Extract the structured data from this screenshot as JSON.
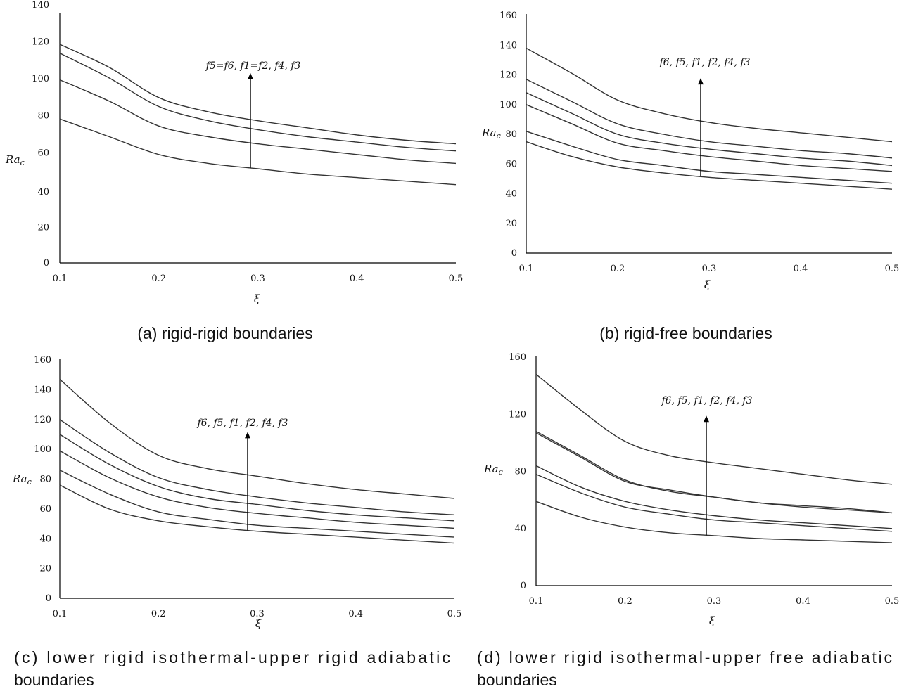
{
  "chart_data": [
    {
      "type": "line",
      "caption": "(a) rigid-rigid boundaries",
      "xlabel": "ξ",
      "ylabel": "Ra",
      "ylabel_sub": "c",
      "xticks": [
        "0.1",
        "0.2",
        "0.3",
        "0.4",
        "0.5"
      ],
      "yticks": [
        "0",
        "20",
        "40",
        "60",
        "80",
        "100",
        "120",
        "140"
      ],
      "xlim": [
        0.1,
        0.5
      ],
      "ylim": [
        0,
        140
      ],
      "annotation": "f5=f6, f1=f2, f4, f3",
      "x": [
        0.1,
        0.15,
        0.2,
        0.25,
        0.3,
        0.35,
        0.4,
        0.45,
        0.5
      ],
      "series": [
        {
          "values": [
            81,
            71,
            61,
            56,
            53,
            50,
            48,
            46,
            44
          ]
        },
        {
          "values": [
            103,
            91,
            77,
            71,
            67,
            64,
            61,
            58,
            56
          ]
        },
        {
          "values": [
            118,
            104,
            88,
            80,
            75,
            71,
            68,
            65,
            63
          ]
        },
        {
          "values": [
            123,
            110,
            93,
            85,
            80,
            76,
            72,
            69,
            67
          ]
        }
      ]
    },
    {
      "type": "line",
      "caption": "(b) rigid-free boundaries",
      "xlabel": "ξ",
      "ylabel": "Ra",
      "ylabel_sub": "c",
      "xticks": [
        "0.1",
        "0.2",
        "0.3",
        "0.4",
        "0.5"
      ],
      "yticks": [
        "0",
        "20",
        "40",
        "60",
        "80",
        "100",
        "120",
        "140",
        "160"
      ],
      "xlim": [
        0.1,
        0.5
      ],
      "ylim": [
        0,
        160
      ],
      "annotation": "f6, f5, f1, f2, f4, f3",
      "x": [
        0.1,
        0.15,
        0.2,
        0.25,
        0.3,
        0.35,
        0.4,
        0.45,
        0.5
      ],
      "series": [
        {
          "values": [
            75,
            65,
            58,
            54,
            51,
            49,
            47,
            45,
            43
          ]
        },
        {
          "values": [
            82,
            72,
            63,
            59,
            55,
            53,
            51,
            49,
            47
          ]
        },
        {
          "values": [
            100,
            87,
            74,
            69,
            65,
            62,
            59,
            57,
            55
          ]
        },
        {
          "values": [
            108,
            94,
            80,
            74,
            70,
            67,
            64,
            62,
            59
          ]
        },
        {
          "values": [
            117,
            102,
            87,
            80,
            75,
            72,
            69,
            67,
            64
          ]
        },
        {
          "values": [
            138,
            121,
            103,
            94,
            88,
            84,
            81,
            78,
            75
          ]
        }
      ]
    },
    {
      "type": "line",
      "caption": "(c) lower rigid isothermal-upper rigid adiabatic boundaries",
      "xlabel": "ξ",
      "ylabel": "Ra",
      "ylabel_sub": "c",
      "xticks": [
        "0.1",
        "0.2",
        "0.3",
        "0.4",
        "0.5"
      ],
      "yticks": [
        "0",
        "20",
        "40",
        "60",
        "80",
        "100",
        "120",
        "140",
        "160"
      ],
      "xlim": [
        0.1,
        0.5
      ],
      "ylim": [
        0,
        160
      ],
      "annotation": "f6, f5, f1, f2, f4, f3",
      "x": [
        0.1,
        0.15,
        0.2,
        0.25,
        0.3,
        0.35,
        0.4,
        0.45,
        0.5
      ],
      "series": [
        {
          "values": [
            76,
            60,
            52,
            48,
            45,
            43,
            41,
            39,
            37
          ]
        },
        {
          "values": [
            86,
            70,
            58,
            53,
            49,
            47,
            45,
            43,
            41
          ]
        },
        {
          "values": [
            99,
            81,
            68,
            61,
            57,
            54,
            51,
            49,
            47
          ]
        },
        {
          "values": [
            110,
            90,
            75,
            67,
            63,
            59,
            56,
            54,
            52
          ]
        },
        {
          "values": [
            120,
            98,
            81,
            73,
            68,
            64,
            61,
            58,
            56
          ]
        },
        {
          "values": [
            147,
            118,
            96,
            87,
            82,
            77,
            73,
            70,
            67
          ]
        }
      ]
    },
    {
      "type": "line",
      "caption": "(d) lower rigid isothermal-upper free adiabatic boundaries",
      "xlabel": "ξ",
      "ylabel": "Ra",
      "ylabel_sub": "c",
      "xticks": [
        "0.1",
        "0.2",
        "0.3",
        "0.4",
        "0.5"
      ],
      "yticks": [
        "0",
        "40",
        "80",
        "120",
        "160"
      ],
      "xlim": [
        0.1,
        0.5
      ],
      "ylim": [
        0,
        160
      ],
      "annotation": "f6, f5, f1, f2, f4, f3",
      "x": [
        0.1,
        0.15,
        0.2,
        0.25,
        0.3,
        0.35,
        0.4,
        0.45,
        0.5
      ],
      "series": [
        {
          "values": [
            59,
            48,
            41,
            37,
            35,
            33,
            32,
            31,
            30
          ]
        },
        {
          "values": [
            78,
            65,
            55,
            50,
            46,
            44,
            42,
            40,
            38
          ]
        },
        {
          "values": [
            84,
            69,
            59,
            53,
            49,
            46,
            44,
            42,
            40
          ]
        },
        {
          "values": [
            107,
            90,
            73,
            67,
            62,
            58,
            55,
            53,
            51
          ]
        },
        {
          "values": [
            108,
            91,
            74,
            66,
            62,
            58,
            56,
            54,
            51
          ]
        },
        {
          "values": [
            148,
            123,
            101,
            91,
            86,
            82,
            78,
            74,
            71
          ]
        }
      ]
    }
  ]
}
